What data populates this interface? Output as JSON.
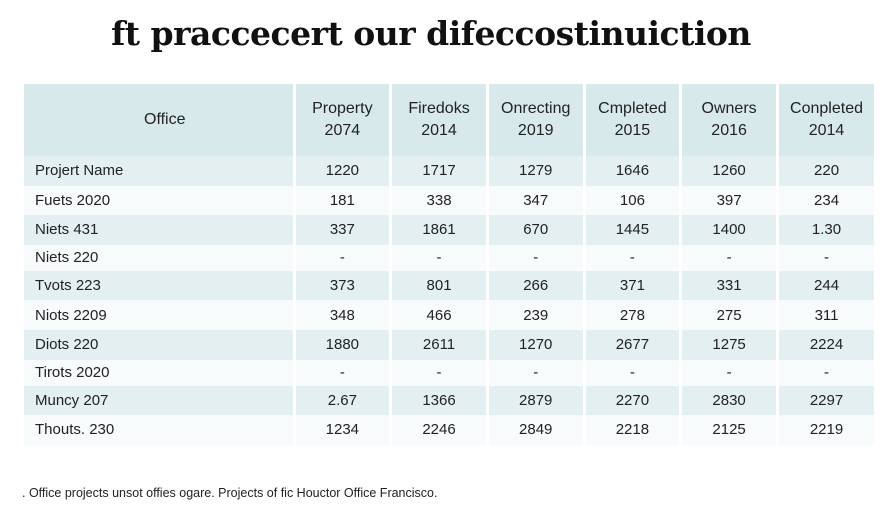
{
  "title": "ft praccecert our difeccostinuiction",
  "footnote": ". Office projects unsot offies ogare. Projects of fic Houctor Office Francisco.",
  "colors": {
    "header_bg": "#d8e9ec",
    "row_shade": "#e3eff1",
    "row_plain": "#f7fbfb"
  },
  "chart_data": {
    "type": "table",
    "columns": [
      {
        "line1": "Office",
        "line2": ""
      },
      {
        "line1": "Property",
        "line2": "2074"
      },
      {
        "line1": "Firedoks",
        "line2": "2014"
      },
      {
        "line1": "Onrecting",
        "line2": "2019"
      },
      {
        "line1": "Cmpleted",
        "line2": "2015"
      },
      {
        "line1": "Owners",
        "line2": "2016"
      },
      {
        "line1": "Conpleted",
        "line2": "2014"
      }
    ],
    "rows": [
      {
        "label": "Projert Name",
        "values": [
          "1220",
          "1717",
          "1279",
          "1646",
          "1260",
          "220"
        ]
      },
      {
        "label": "Fuets 2020",
        "values": [
          "181",
          "338",
          "347",
          "106",
          "397",
          "234"
        ]
      },
      {
        "label": "Niets 431",
        "values": [
          "337",
          "1861",
          "670",
          "1445",
          "1400",
          "1.30"
        ]
      },
      {
        "label": "Niets 220",
        "values": [
          "-",
          "-",
          "-",
          "-",
          "-",
          "-"
        ]
      },
      {
        "label": "Tvots 223",
        "values": [
          "373",
          "801",
          "266",
          "371",
          "331",
          "244"
        ]
      },
      {
        "label": "Niots 2209",
        "values": [
          "348",
          "466",
          "239",
          "278",
          "275",
          "311"
        ]
      },
      {
        "label": "Diots 220",
        "values": [
          "1880",
          "2611",
          "1270",
          "2677",
          "1275",
          "2224"
        ]
      },
      {
        "label": "Tirots 2020",
        "values": [
          "-",
          "-",
          "-",
          "-",
          "-",
          "-"
        ]
      },
      {
        "label": "Muncy 207",
        "values": [
          "2.67",
          "1366",
          "2879",
          "2270",
          "2830",
          "2297"
        ]
      },
      {
        "label": "Thouts. 230",
        "values": [
          "1234",
          "2246",
          "2849",
          "2218",
          "2125",
          "2219"
        ]
      }
    ]
  }
}
